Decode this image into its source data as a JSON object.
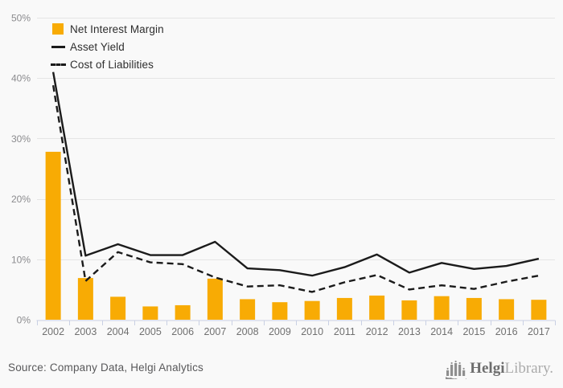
{
  "chart_data": {
    "type": "combo",
    "title": "",
    "xlabel": "",
    "ylabel": "",
    "categories": [
      "2002",
      "2003",
      "2004",
      "2005",
      "2006",
      "2007",
      "2008",
      "2009",
      "2010",
      "2011",
      "2012",
      "2013",
      "2014",
      "2015",
      "2016",
      "2017"
    ],
    "series": [
      {
        "name": "Net Interest Margin",
        "kind": "bar",
        "color": "#F8AB04",
        "values": [
          27.8,
          6.9,
          3.8,
          2.2,
          2.4,
          6.8,
          3.4,
          2.9,
          3.1,
          3.6,
          4.0,
          3.2,
          3.9,
          3.6,
          3.4,
          3.3
        ]
      },
      {
        "name": "Asset Yield",
        "kind": "line",
        "line_style": "solid",
        "color": "#1B1B1B",
        "values": [
          41.0,
          10.6,
          12.5,
          10.7,
          10.7,
          12.9,
          8.5,
          8.2,
          7.3,
          8.7,
          10.8,
          7.8,
          9.4,
          8.4,
          8.9,
          10.1
        ]
      },
      {
        "name": "Cost of Liabilities",
        "kind": "line",
        "line_style": "dashed",
        "color": "#1B1B1B",
        "values": [
          38.8,
          6.4,
          11.2,
          9.5,
          9.2,
          7.0,
          5.5,
          5.7,
          4.6,
          6.2,
          7.4,
          5.0,
          5.7,
          5.1,
          6.3,
          7.3
        ]
      }
    ],
    "ylim": [
      0,
      50
    ],
    "ytick_labels": [
      "0%",
      "10%",
      "20%",
      "30%",
      "40%",
      "50%"
    ],
    "unit": "%",
    "grid": "horizontal",
    "legend_position": "top-left"
  },
  "footer": {
    "source": "Source: Company Data, Helgi Analytics",
    "logo": {
      "bold": "Helgi",
      "light": "Library."
    }
  },
  "colors": {
    "background": "#F9F9F9",
    "bar": "#F8AB04",
    "line": "#1B1B1B",
    "grid": "#E5E5E5",
    "axis": "#C9D0E4",
    "ytick_text": "#8B8B8E",
    "xtick_text": "#707070",
    "source_text": "#58585A",
    "logo_gray": "#8F8F8F"
  }
}
